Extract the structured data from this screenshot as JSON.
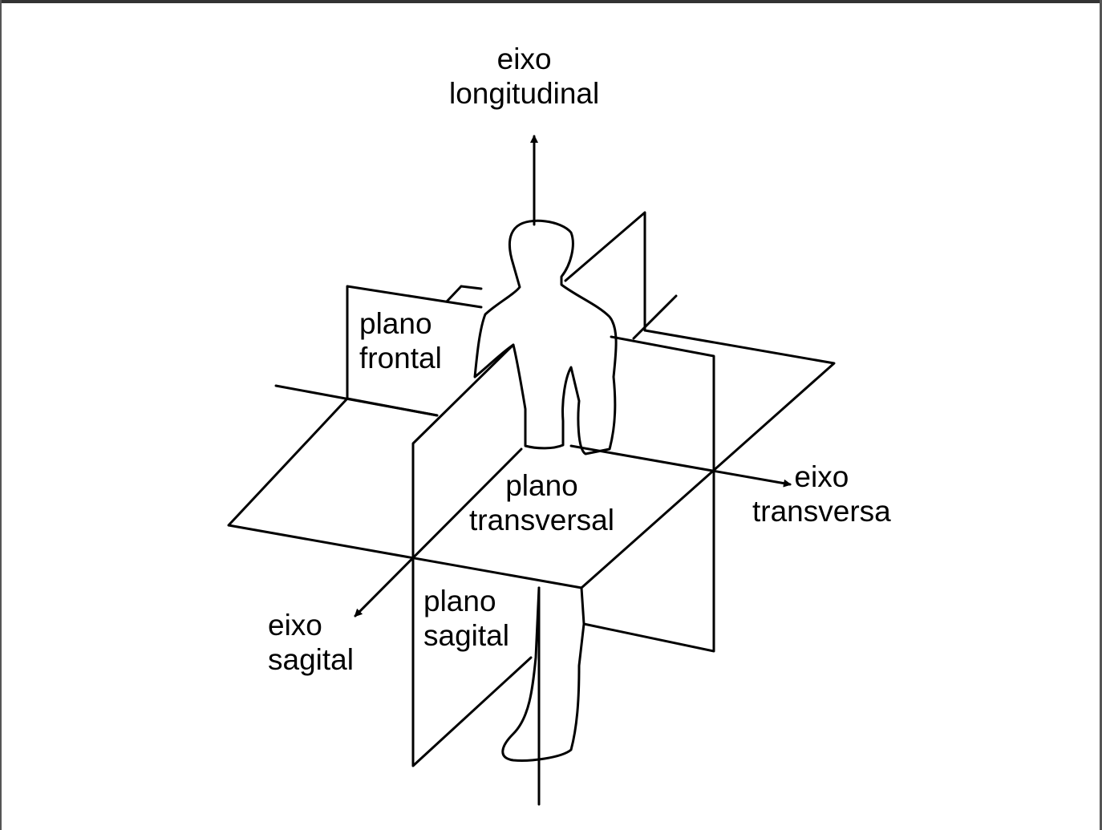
{
  "diagram": {
    "axes": {
      "longitudinal": {
        "line1": "eixo",
        "line2": "longitudinal"
      },
      "transversa": {
        "line1": "eixo",
        "line2": "transversa"
      },
      "sagital": {
        "line1": "eixo",
        "line2": "sagital"
      }
    },
    "planes": {
      "frontal": {
        "line1": "plano",
        "line2": "frontal"
      },
      "transversal": {
        "line1": "plano",
        "line2": "transversal"
      },
      "sagital": {
        "line1": "plano",
        "line2": "sagital"
      }
    }
  }
}
